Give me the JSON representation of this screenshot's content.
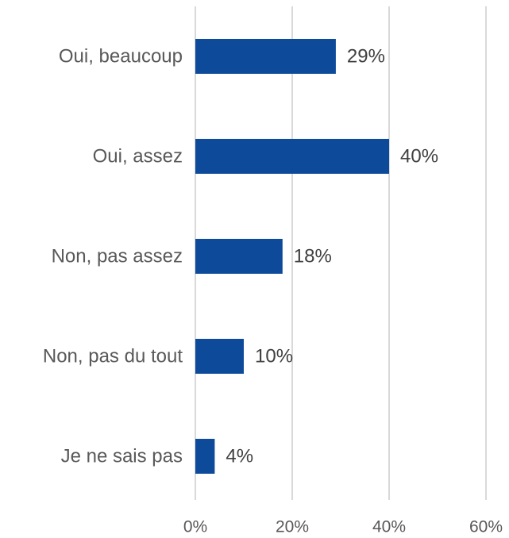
{
  "chart_data": {
    "type": "bar",
    "orientation": "horizontal",
    "categories": [
      "Oui, beaucoup",
      "Oui, assez",
      "Non, pas assez",
      "Non, pas du tout",
      "Je ne sais pas"
    ],
    "values": [
      29,
      40,
      18,
      10,
      4
    ],
    "value_labels": [
      "29%",
      "40%",
      "18%",
      "10%",
      "4%"
    ],
    "color": "#0d4b9a",
    "xlim": [
      0,
      60
    ],
    "xticks": [
      {
        "value": 0,
        "label": "0%"
      },
      {
        "value": 20,
        "label": "20%"
      },
      {
        "value": 40,
        "label": "40%"
      },
      {
        "value": 60,
        "label": "60%"
      }
    ],
    "grid": true
  }
}
